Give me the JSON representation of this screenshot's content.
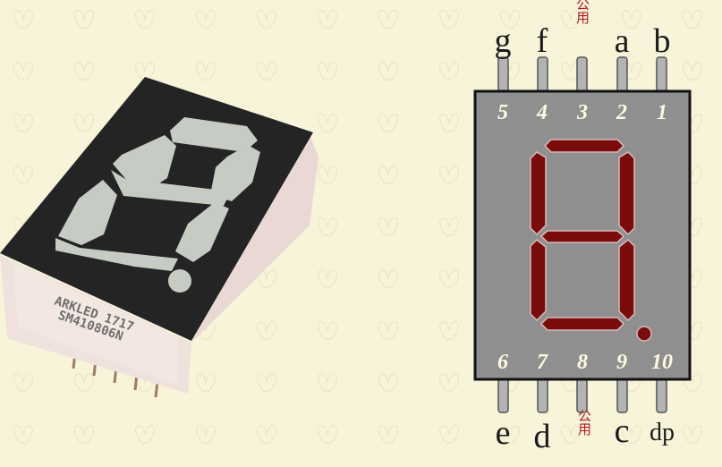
{
  "photo": {
    "brand_line": "ARKLED 1717",
    "model_line": "SM410806N"
  },
  "diagram": {
    "body_color": "#8f8f8f",
    "segment_color": "#7a0c0c",
    "top_pins": [
      {
        "letter": "g",
        "number": "5"
      },
      {
        "letter": "f",
        "number": "4"
      },
      {
        "letter": "公用",
        "number": "3"
      },
      {
        "letter": "a",
        "number": "2"
      },
      {
        "letter": "b",
        "number": "1"
      }
    ],
    "bottom_pins": [
      {
        "letter": "e",
        "number": "6"
      },
      {
        "letter": "d",
        "number": "7"
      },
      {
        "letter": "公用",
        "number": "8"
      },
      {
        "letter": "c",
        "number": "9"
      },
      {
        "letter": "dp",
        "number": "10"
      }
    ]
  }
}
